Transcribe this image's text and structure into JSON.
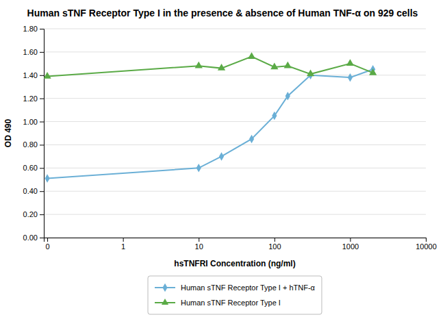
{
  "chart_data": {
    "type": "line",
    "title": "Human sTNF Receptor Type I in the presence & absence of Human TNF-α on 929 cells",
    "xlabel": "hsTNFRI Concentration (ng/ml)",
    "ylabel": "OD 490",
    "x": [
      0.1,
      10,
      20,
      50,
      100,
      150,
      300,
      1000,
      2000
    ],
    "series": [
      {
        "name": "Human sTNF Receptor Type I + hTNF-α",
        "color": "#6aafd6",
        "marker": "diamond",
        "values": [
          0.51,
          0.6,
          0.7,
          0.85,
          1.05,
          1.22,
          1.4,
          1.38,
          1.45
        ]
      },
      {
        "name": "Human sTNF Receptor Type I",
        "color": "#5aaa46",
        "marker": "triangle-up",
        "values": [
          1.39,
          1.48,
          1.46,
          1.56,
          1.47,
          1.48,
          1.41,
          1.5,
          1.42
        ]
      }
    ],
    "log": "x",
    "xlim": [
      0.09,
      10000
    ],
    "xticks": [
      {
        "value": 0.1,
        "label": "0"
      },
      1,
      10,
      100,
      1000,
      10000
    ],
    "ylim": [
      0.0,
      1.8
    ],
    "yticks": [
      {
        "value": 0.0,
        "label": "0.00"
      },
      {
        "value": 0.2,
        "label": "0.20"
      },
      {
        "value": 0.4,
        "label": "0.40"
      },
      {
        "value": 0.6,
        "label": "0.60"
      },
      {
        "value": 0.8,
        "label": "0.80"
      },
      {
        "value": 1.0,
        "label": "1.00"
      },
      {
        "value": 1.2,
        "label": "1.20"
      },
      {
        "value": 1.4,
        "label": "1.40"
      },
      {
        "value": 1.6,
        "label": "1.60"
      },
      {
        "value": 1.8,
        "label": "1.80"
      }
    ],
    "grid": "y",
    "legend": "bottom"
  }
}
